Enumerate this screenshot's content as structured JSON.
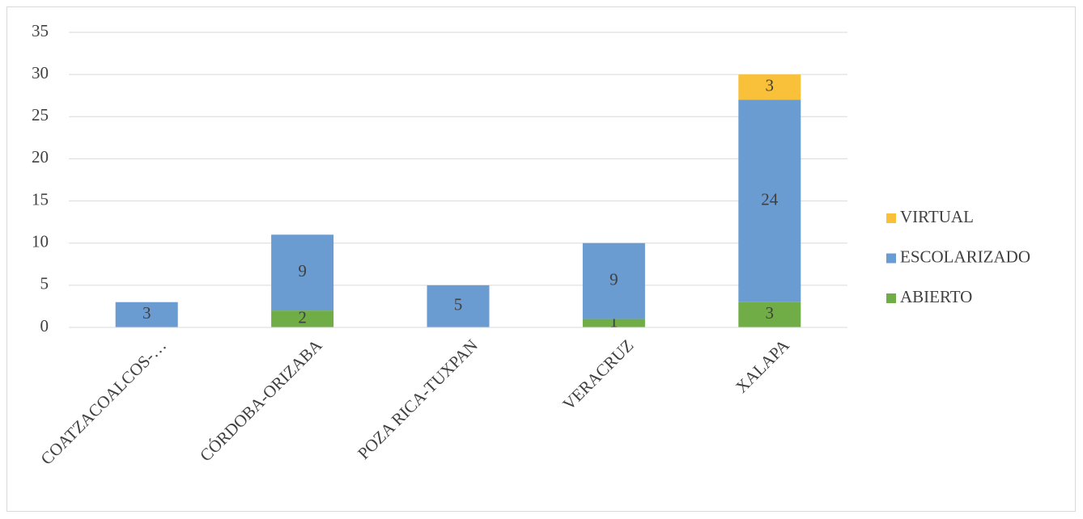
{
  "chart_data": {
    "type": "stacked_bar",
    "categories": [
      "COATZACOALCOS-…",
      "CÓRDOBA-ORIZABA",
      "POZA RICA-TUXPAN",
      "VERACRUZ",
      "XALAPA"
    ],
    "series": [
      {
        "name": "ABIERTO",
        "color": "#70ad47",
        "values": [
          null,
          2,
          null,
          1,
          3
        ]
      },
      {
        "name": "ESCOLARIZADO",
        "color": "#6a9bd1",
        "values": [
          3,
          9,
          5,
          9,
          24
        ]
      },
      {
        "name": "VIRTUAL",
        "color": "#f9c03a",
        "values": [
          null,
          null,
          null,
          null,
          3
        ]
      }
    ],
    "ylim": [
      0,
      35
    ],
    "yticks": [
      0,
      5,
      10,
      15,
      20,
      25,
      30,
      35
    ],
    "grid": true,
    "legend": "right"
  }
}
